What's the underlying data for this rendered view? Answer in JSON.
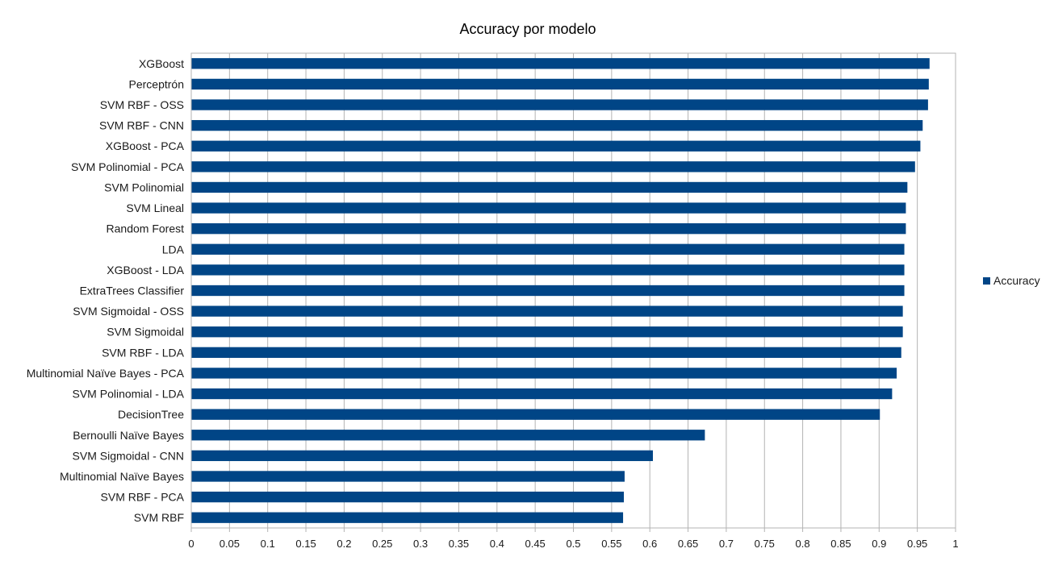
{
  "chart_data": {
    "type": "bar",
    "orientation": "horizontal",
    "title": "Accuracy por modelo",
    "xlabel": "",
    "ylabel": "",
    "xlim": [
      0,
      1
    ],
    "x_ticks": [
      "0",
      "0.05",
      "0.1",
      "0.15",
      "0.2",
      "0.25",
      "0.3",
      "0.35",
      "0.4",
      "0.45",
      "0.5",
      "0.55",
      "0.6",
      "0.65",
      "0.7",
      "0.75",
      "0.8",
      "0.85",
      "0.9",
      "0.95",
      "1"
    ],
    "grid": true,
    "legend_position": "right",
    "series": [
      {
        "name": "Accuracy",
        "color": "#004586",
        "values": [
          0.966,
          0.965,
          0.964,
          0.957,
          0.954,
          0.947,
          0.937,
          0.935,
          0.935,
          0.933,
          0.933,
          0.933,
          0.931,
          0.931,
          0.929,
          0.923,
          0.917,
          0.901,
          0.672,
          0.604,
          0.567,
          0.566,
          0.565
        ]
      }
    ],
    "categories": [
      "XGBoost",
      "Perceptrón",
      "SVM RBF - OSS",
      "SVM RBF - CNN",
      "XGBoost - PCA",
      "SVM Polinomial - PCA",
      "SVM Polinomial",
      "SVM Lineal",
      "Random Forest",
      "LDA",
      "XGBoost - LDA",
      "ExtraTrees Classifier",
      "SVM Sigmoidal - OSS",
      "SVM Sigmoidal",
      "SVM RBF - LDA",
      "Multinomial Naïve Bayes - PCA",
      "SVM Polinomial - LDA",
      "DecisionTree",
      "Bernoulli Naïve Bayes",
      "SVM Sigmoidal - CNN",
      "Multinomial Naïve Bayes",
      "SVM RBF - PCA",
      "SVM RBF"
    ]
  }
}
